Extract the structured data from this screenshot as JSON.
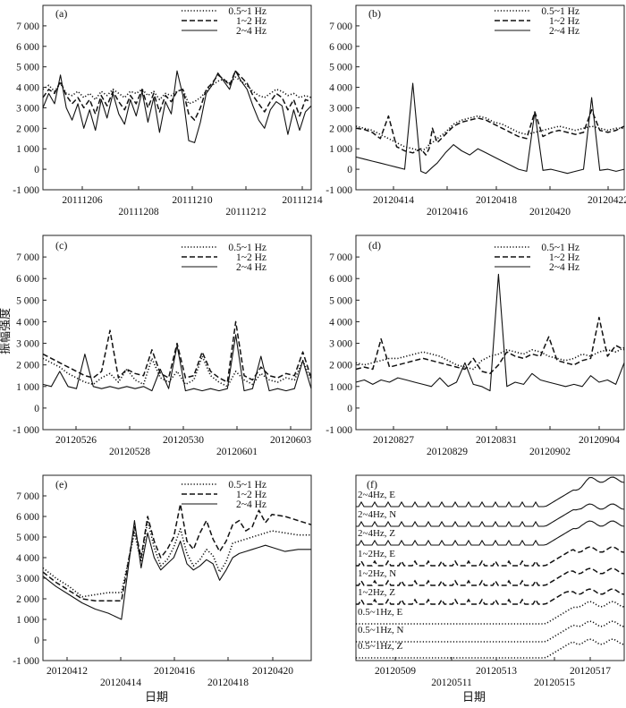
{
  "figure": {
    "xlabel": "日期",
    "ylabel": "振幅强度"
  },
  "legend": [
    "0.5~1 Hz",
    "1~2 Hz",
    "2~4 Hz"
  ],
  "chart_data": [
    {
      "type": "line",
      "label": "(a)",
      "ylim": [
        -1000,
        8000
      ],
      "yticks": [
        -1000,
        0,
        1000,
        2000,
        3000,
        4000,
        5000,
        6000,
        7000
      ],
      "ytick_labels": [
        "-1 000",
        "0",
        "1 000",
        "2 000",
        "3 000",
        "4 000",
        "5 000",
        "6 000",
        "7 000"
      ],
      "x_tick_labels": [
        "20111206",
        "20111208",
        "20111210",
        "20111212",
        "20111214"
      ],
      "x": [
        0,
        0.2,
        0.4,
        0.6,
        0.8,
        1.0,
        1.2,
        1.4,
        1.6,
        1.8,
        2.0,
        2.2,
        2.4,
        2.6,
        2.8,
        3.0,
        3.2,
        3.4,
        3.6,
        3.8,
        4.0,
        4.2,
        4.4,
        4.6,
        4.8,
        5.0,
        5.2,
        5.4,
        5.6,
        5.8,
        6.0,
        6.2,
        6.4,
        6.6,
        6.8,
        7.0,
        7.2,
        7.4,
        7.6,
        7.8,
        8.0,
        8.2,
        8.4,
        8.6,
        8.8,
        9.0,
        9.2
      ],
      "series": [
        {
          "name": "0.5~1 Hz",
          "style": "dotted",
          "values": [
            3900,
            4100,
            3800,
            4200,
            3700,
            3600,
            3800,
            3500,
            3700,
            3400,
            3800,
            3600,
            3900,
            3700,
            3500,
            3800,
            3700,
            3900,
            3600,
            3800,
            3400,
            3700,
            3600,
            3800,
            3900,
            3200,
            3300,
            3500,
            3800,
            4100,
            4300,
            4400,
            4200,
            4500,
            4300,
            4100,
            3800,
            3600,
            3500,
            3700,
            3900,
            3800,
            3600,
            3700,
            3500,
            3600,
            3500
          ]
        },
        {
          "name": "1~2 Hz",
          "style": "dashed",
          "values": [
            3500,
            3900,
            3700,
            4300,
            3600,
            3200,
            3500,
            3000,
            3400,
            2700,
            3600,
            3100,
            3800,
            3300,
            2900,
            3600,
            3200,
            3900,
            3000,
            3700,
            2800,
            3600,
            3300,
            3800,
            3900,
            2700,
            2400,
            3000,
            3900,
            4200,
            4600,
            4400,
            4100,
            4800,
            4500,
            4200,
            3600,
            3200,
            2800,
            3300,
            3700,
            3500,
            2900,
            3400,
            2600,
            3400,
            3300
          ]
        },
        {
          "name": "2~4 Hz",
          "style": "solid",
          "values": [
            3000,
            3700,
            3200,
            4600,
            3000,
            2400,
            3200,
            2000,
            2900,
            1900,
            3400,
            2500,
            3700,
            2700,
            2200,
            3400,
            2600,
            3800,
            2300,
            3500,
            1800,
            3300,
            2700,
            4800,
            3600,
            1400,
            1300,
            2300,
            3700,
            4100,
            4700,
            4300,
            3900,
            4800,
            4300,
            3900,
            3100,
            2400,
            2000,
            2900,
            3300,
            3100,
            1700,
            2900,
            1900,
            2800,
            3100
          ]
        }
      ]
    },
    {
      "type": "line",
      "label": "(b)",
      "ylim": [
        -1000,
        8000
      ],
      "yticks": [
        -1000,
        0,
        1000,
        2000,
        3000,
        4000,
        5000,
        6000,
        7000
      ],
      "ytick_labels": [
        "-1 000",
        "0",
        "1 000",
        "2 000",
        "3 000",
        "4 000",
        "5 000",
        "6 000",
        "7 000"
      ],
      "x_tick_labels": [
        "20120414",
        "20120416",
        "20120418",
        "20120420",
        "20120422"
      ],
      "x": [
        0,
        0.5,
        1.0,
        1.5,
        2.0,
        2.5,
        3.0,
        3.5,
        4.0,
        4.3,
        4.5,
        4.7,
        5.0,
        5.5,
        6.0,
        6.5,
        7.0,
        7.5,
        8.0,
        8.5,
        9.0,
        9.5,
        10.0,
        10.5,
        11.0,
        11.5,
        12.0,
        12.5,
        13.0,
        13.5,
        14.0,
        14.5,
        15.0,
        15.5,
        16.0,
        16.5
      ],
      "series": [
        {
          "name": "0.5~1 Hz",
          "style": "dotted",
          "values": [
            2100,
            2000,
            1900,
            1700,
            1500,
            1300,
            1100,
            1000,
            900,
            1000,
            1200,
            1300,
            1500,
            1800,
            2200,
            2400,
            2500,
            2600,
            2500,
            2300,
            2200,
            2000,
            1800,
            1700,
            1800,
            1900,
            2000,
            2100,
            2000,
            1900,
            2000,
            2100,
            2000,
            1900,
            2000,
            2000
          ]
        },
        {
          "name": "1~2 Hz",
          "style": "dashed",
          "values": [
            2000,
            1950,
            1800,
            1500,
            2600,
            1100,
            900,
            800,
            1000,
            700,
            1000,
            2000,
            1300,
            1700,
            2100,
            2300,
            2400,
            2500,
            2400,
            2200,
            2000,
            1800,
            1600,
            1500,
            2800,
            1600,
            1800,
            1900,
            1800,
            1700,
            1800,
            2900,
            1900,
            1800,
            1900,
            2100
          ]
        },
        {
          "name": "2~4 Hz",
          "style": "solid",
          "values": [
            600,
            500,
            400,
            300,
            200,
            100,
            0,
            4200,
            -100,
            -200,
            -50,
            100,
            300,
            800,
            1200,
            900,
            700,
            1000,
            800,
            600,
            400,
            200,
            0,
            -100,
            2800,
            -50,
            0,
            -100,
            -200,
            -100,
            0,
            3500,
            -50,
            0,
            -100,
            0
          ]
        }
      ]
    },
    {
      "type": "line",
      "label": "(c)",
      "ylim": [
        -1000,
        8000
      ],
      "yticks": [
        -1000,
        0,
        1000,
        2000,
        3000,
        4000,
        5000,
        6000,
        7000
      ],
      "ytick_labels": [
        "-1 000",
        "0",
        "1 000",
        "2 000",
        "3 000",
        "4 000",
        "5 000",
        "6 000",
        "7 000"
      ],
      "x_tick_labels": [
        "20120526",
        "20120528",
        "20120530",
        "20120601",
        "20120603"
      ],
      "x": [
        0,
        0.5,
        1.0,
        1.5,
        2.0,
        2.5,
        3.0,
        3.5,
        4.0,
        4.5,
        5.0,
        5.5,
        6.0,
        6.5,
        7.0,
        7.5,
        8.0,
        8.5,
        9.0,
        9.5,
        10.0,
        10.5,
        11.0,
        11.5,
        12.0,
        12.5,
        13.0,
        13.5,
        14.0,
        14.5,
        15.0,
        15.5,
        16.0
      ],
      "series": [
        {
          "name": "0.5~1 Hz",
          "style": "dotted",
          "values": [
            2300,
            2100,
            1900,
            1600,
            1400,
            1200,
            1100,
            1400,
            1600,
            1200,
            1800,
            1300,
            1100,
            2300,
            1400,
            1200,
            1700,
            1100,
            1300,
            2400,
            1500,
            1200,
            1000,
            1700,
            1300,
            1100,
            1600,
            1300,
            1200,
            1400,
            1300,
            2200,
            1300
          ]
        },
        {
          "name": "1~2 Hz",
          "style": "dashed",
          "values": [
            2500,
            2300,
            2100,
            1900,
            1700,
            1500,
            1400,
            1700,
            3600,
            1400,
            1800,
            1600,
            1500,
            2700,
            1600,
            1400,
            3000,
            1400,
            1500,
            2600,
            1700,
            1400,
            1200,
            4000,
            1500,
            1300,
            1900,
            1500,
            1400,
            1600,
            1500,
            2600,
            1400
          ]
        },
        {
          "name": "2~4 Hz",
          "style": "solid",
          "values": [
            1100,
            1000,
            1700,
            1000,
            900,
            2500,
            1000,
            900,
            1000,
            900,
            1000,
            900,
            1000,
            800,
            1800,
            900,
            2900,
            800,
            900,
            800,
            900,
            800,
            900,
            3400,
            800,
            900,
            2400,
            800,
            900,
            800,
            900,
            2200,
            900
          ]
        }
      ]
    },
    {
      "type": "line",
      "label": "(d)",
      "ylim": [
        -1000,
        8000
      ],
      "yticks": [
        -1000,
        0,
        1000,
        2000,
        3000,
        4000,
        5000,
        6000,
        7000
      ],
      "ytick_labels": [
        "-1 000",
        "0",
        "1 000",
        "2 000",
        "3 000",
        "4 000",
        "5 000",
        "6 000",
        "7 000"
      ],
      "x_tick_labels": [
        "20120827",
        "20120829",
        "20120831",
        "20120902",
        "20120904"
      ],
      "x": [
        0,
        0.5,
        1.0,
        1.5,
        2.0,
        2.5,
        3.0,
        3.5,
        4.0,
        4.5,
        5.0,
        5.5,
        6.0,
        6.5,
        7.0,
        7.5,
        8.0,
        8.5,
        9.0,
        9.5,
        10.0,
        10.5,
        11.0,
        11.5,
        12.0,
        12.5,
        13.0,
        13.5,
        14.0,
        14.5,
        15.0,
        15.5,
        16.0
      ],
      "series": [
        {
          "name": "0.5~1 Hz",
          "style": "dotted",
          "values": [
            2100,
            2000,
            2100,
            2200,
            2300,
            2300,
            2400,
            2500,
            2600,
            2500,
            2400,
            2200,
            2000,
            1900,
            1800,
            2200,
            2400,
            2500,
            2700,
            2600,
            2500,
            2700,
            2600,
            2400,
            2300,
            2200,
            2300,
            2500,
            2400,
            2600,
            2700,
            2600,
            2800
          ]
        },
        {
          "name": "1~2 Hz",
          "style": "dashed",
          "values": [
            1800,
            1900,
            1800,
            3200,
            1900,
            2000,
            2100,
            2200,
            2300,
            2200,
            2100,
            2000,
            1900,
            1800,
            2300,
            1700,
            1600,
            2000,
            2600,
            2400,
            2300,
            2500,
            2400,
            3300,
            2200,
            2100,
            2000,
            2200,
            2300,
            4200,
            2400,
            2900,
            2700
          ]
        },
        {
          "name": "2~4 Hz",
          "style": "solid",
          "values": [
            1200,
            1300,
            1100,
            1300,
            1200,
            1400,
            1300,
            1200,
            1100,
            1000,
            1400,
            1000,
            1200,
            2100,
            1100,
            1000,
            800,
            6200,
            1000,
            1200,
            1100,
            1600,
            1300,
            1200,
            1100,
            1000,
            1100,
            1000,
            1500,
            1200,
            1300,
            1100,
            2100
          ]
        }
      ]
    },
    {
      "type": "line",
      "label": "(e)",
      "ylim": [
        -1000,
        8000
      ],
      "yticks": [
        -1000,
        0,
        1000,
        2000,
        3000,
        4000,
        5000,
        6000,
        7000
      ],
      "ytick_labels": [
        "-1 000",
        "0",
        "1 000",
        "2 000",
        "3 000",
        "4 000",
        "5 000",
        "6 000",
        "7 000"
      ],
      "x_tick_labels": [
        "20120412",
        "20120414",
        "20120416",
        "20120418",
        "20120420"
      ],
      "x": [
        0,
        0.4,
        0.8,
        1.2,
        1.6,
        2.0,
        2.4,
        2.8,
        3.0,
        3.2,
        3.4,
        3.6,
        3.8,
        4.0,
        4.2,
        4.4,
        4.6,
        4.8,
        5.0,
        5.2,
        5.4,
        5.6,
        5.8,
        6.0,
        6.2,
        6.4,
        6.6,
        6.8,
        7.0,
        7.4,
        7.8,
        8.2
      ],
      "series": [
        {
          "name": "0.5~1 Hz",
          "style": "dotted",
          "values": [
            3500,
            3000,
            2600,
            2100,
            2200,
            2300,
            2300,
            5200,
            3800,
            5800,
            4500,
            3600,
            3900,
            4500,
            5400,
            4200,
            3600,
            3900,
            4400,
            4100,
            3300,
            3800,
            4700,
            4800,
            4900,
            5000,
            5100,
            5200,
            5300,
            5200,
            5100,
            5100
          ]
        },
        {
          "name": "1~2 Hz",
          "style": "dashed",
          "values": [
            3300,
            2800,
            2400,
            2000,
            1900,
            1900,
            1900,
            5500,
            4000,
            6000,
            4800,
            4000,
            4400,
            5000,
            6600,
            4800,
            4400,
            5200,
            5800,
            4900,
            4300,
            4800,
            5600,
            5800,
            5300,
            5500,
            6300,
            5700,
            6100,
            6000,
            5800,
            5600
          ]
        },
        {
          "name": "2~4 Hz",
          "style": "solid",
          "values": [
            3100,
            2600,
            2200,
            1800,
            1500,
            1300,
            1000,
            5800,
            3500,
            5200,
            4000,
            3400,
            3700,
            4000,
            4800,
            3700,
            3400,
            3600,
            3900,
            3700,
            2900,
            3400,
            4000,
            4200,
            4300,
            4400,
            4500,
            4600,
            4500,
            4300,
            4400,
            4400
          ]
        }
      ]
    },
    {
      "type": "line",
      "label": "(f)",
      "x_tick_labels": [
        "20120509",
        "20120511",
        "20120513",
        "20120515",
        "20120517"
      ],
      "stack_labels": [
        "2~4Hz, E",
        "2~4Hz, N",
        "2~4Hz, Z",
        "1~2Hz, E",
        "1~2Hz, N",
        "1~2Hz, Z",
        "0.5~1Hz, E",
        "0.5~1Hz, N",
        "0.5~1Hz, Z"
      ]
    }
  ]
}
